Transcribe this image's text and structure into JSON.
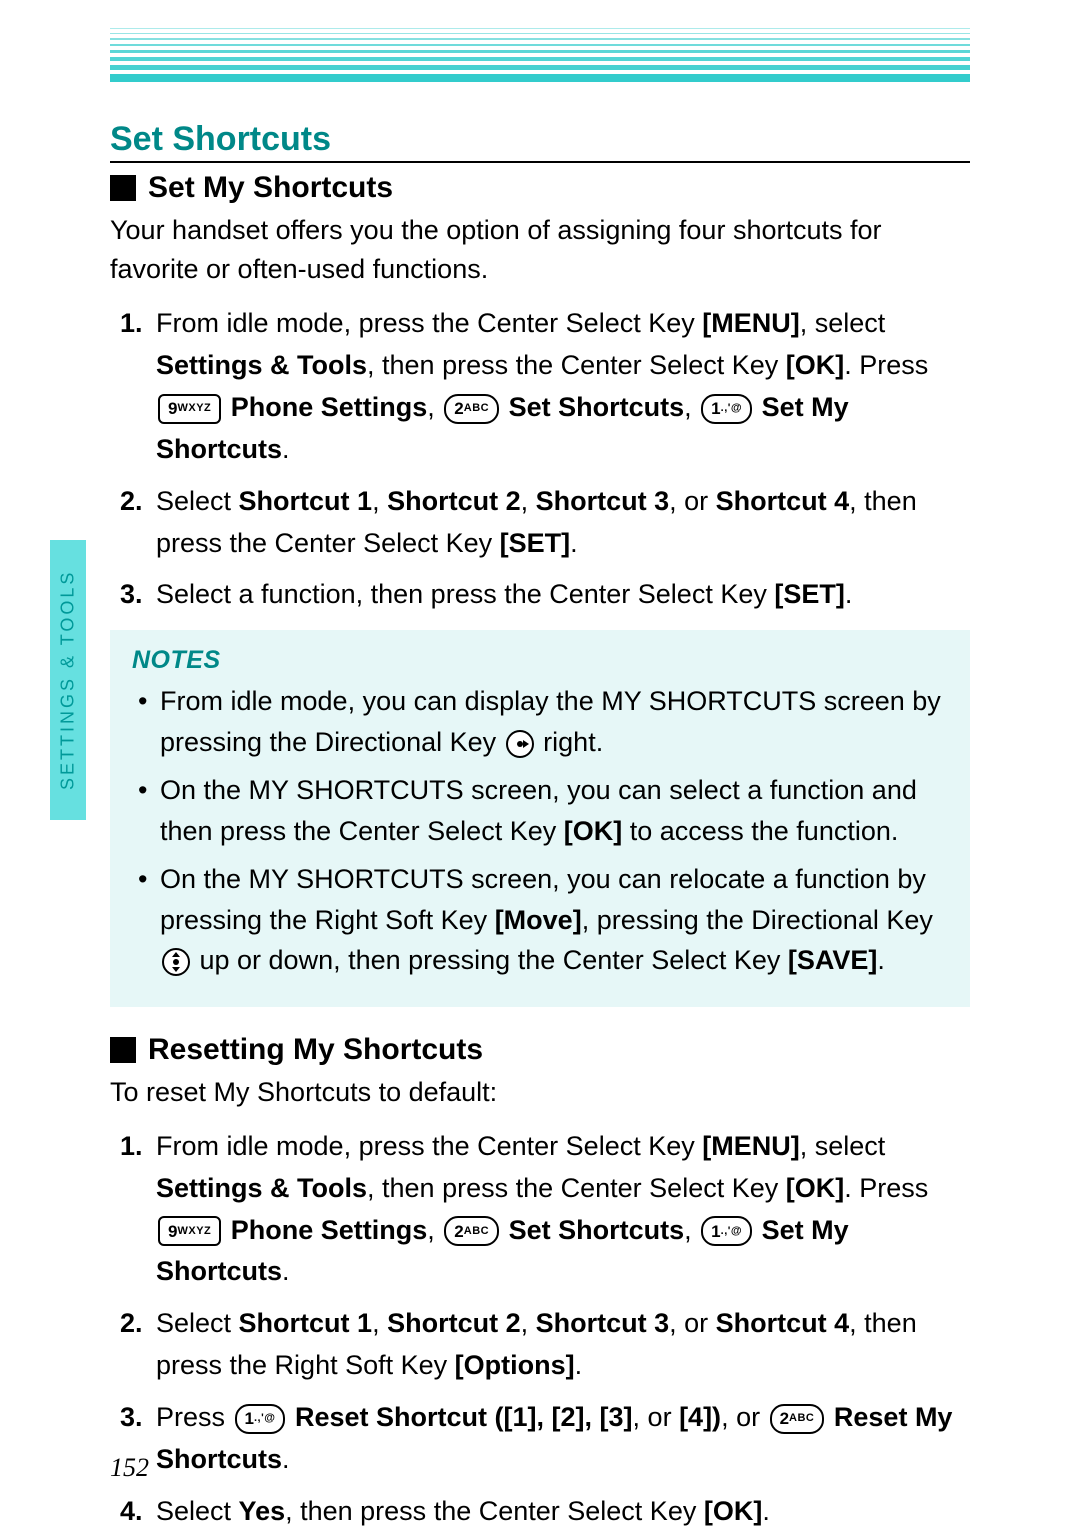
{
  "colors": {
    "accent": "#008888",
    "stripe": "#33cccc",
    "tab_bg": "#66e0e0",
    "notes_bg": "#e6f7f7",
    "text": "#000000",
    "page_bg": "#ffffff"
  },
  "typography": {
    "body_fontsize_pt": 20,
    "h1_fontsize_pt": 25,
    "h2_fontsize_pt": 22,
    "font_family": "Arial, Helvetica, sans-serif"
  },
  "side_tab": "SETTINGS & TOOLS",
  "page_number": "152",
  "h1": "Set Shortcuts",
  "section1": {
    "title": "Set My Shortcuts",
    "intro": "Your handset offers you the option of assigning four shortcuts for favorite or often-used functions.",
    "step1_a": "From idle mode, press the Center Select Key ",
    "step1_menu": "[MENU]",
    "step1_b": ", select ",
    "step1_st": "Settings & Tools",
    "step1_c": ", then press the Center Select Key ",
    "step1_ok": "[OK]",
    "step1_d": ". Press ",
    "key9_big": "9",
    "key9_small": "WXYZ",
    "step1_ps": " Phone Settings",
    "step1_e": ", ",
    "key2_big": "2",
    "key2_small": "ABC",
    "step1_ss": " Set Shortcuts",
    "key1_big": "1",
    "key1_small": ".,'@",
    "step1_sms": " Set My Shortcuts",
    "step1_f": ".",
    "step2_a": "Select ",
    "step2_s1": "Shortcut 1",
    "step2_s2": "Shortcut 2",
    "step2_s3": "Shortcut 3",
    "step2_or": ", or ",
    "step2_s4": "Shortcut 4",
    "step2_b": ", then press the Center Select Key ",
    "step2_set": "[SET]",
    "step2_c": ".",
    "step3_a": "Select a function, then press the Center Select Key ",
    "step3_set": "[SET]",
    "step3_b": "."
  },
  "notes": {
    "title": "NOTES",
    "n1_a": "From idle mode, you can display the MY SHORTCUTS screen by pressing the Directional Key ",
    "n1_b": " right.",
    "n2_a": "On the MY SHORTCUTS screen, you can select a function and then press the Center Select Key ",
    "n2_ok": "[OK]",
    "n2_b": " to access the function.",
    "n3_a": "On the MY SHORTCUTS screen, you can relocate a function by pressing the Right Soft Key ",
    "n3_move": "[Move]",
    "n3_b": ", pressing the Directional Key ",
    "n3_c": " up or down, then pressing the Center Select Key ",
    "n3_save": "[SAVE]",
    "n3_d": "."
  },
  "section2": {
    "title": "Resetting My Shortcuts",
    "intro": "To reset My Shortcuts to default:",
    "step1_a": "From idle mode, press the Center Select Key ",
    "step1_menu": "[MENU]",
    "step1_b": ", select ",
    "step1_st": "Settings & Tools",
    "step1_c": ", then press the Center Select Key ",
    "step1_ok": "[OK]",
    "step1_d": ". Press ",
    "step1_ps": " Phone Settings",
    "step1_ss": " Set Shortcuts",
    "step1_sms": " Set My Shortcuts",
    "step2_a": "Select ",
    "step2_s1": "Shortcut 1",
    "step2_s2": "Shortcut 2",
    "step2_s3": "Shortcut 3",
    "step2_or": ", or ",
    "step2_s4": "Shortcut 4",
    "step2_b": ", then press the Right Soft Key ",
    "step2_opt": "[Options]",
    "step2_c": ".",
    "step3_a": "Press ",
    "step3_rs": " Reset Shortcut ([1]",
    "step3_rs2": "[2]",
    "step3_rs3": "[3]",
    "step3_rs4or": ", or ",
    "step3_rs4": "[4])",
    "step3_or": ", or ",
    "step3_rms": " Reset My Shortcuts",
    "step3_b": ".",
    "step4_a": "Select ",
    "step4_yes": "Yes",
    "step4_b": ", then press the Center Select Key ",
    "step4_ok": "[OK]",
    "step4_c": "."
  },
  "sep": ", "
}
